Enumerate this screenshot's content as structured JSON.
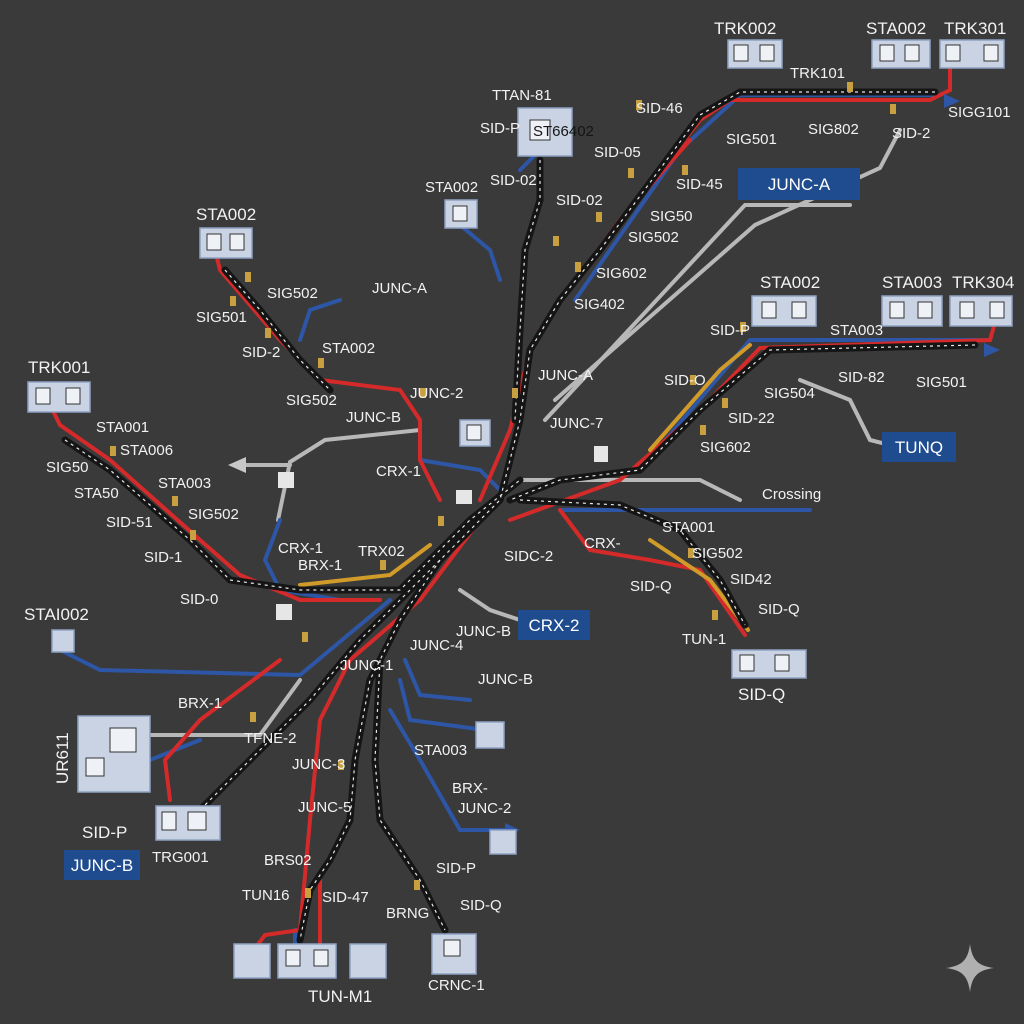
{
  "colors": {
    "background": "#3a3a3a",
    "track_red": "#d42a2a",
    "track_blue": "#2e56a6",
    "track_gray": "#b8b8b8",
    "track_yellow": "#d19b2a",
    "rail_dark": "#151515",
    "badge_blue": "#1f4b8f",
    "signal_gold": "#c8a040"
  },
  "icons": {
    "watermark": "sparkle-icon"
  },
  "labels": {
    "trk002_top": "TRK002",
    "sta002_top": "STA002",
    "trk301": "TRK301",
    "trk101": "TRK101",
    "tan81": "TTAN-81",
    "sidp_top": "SID-P",
    "st66402": "ST66402",
    "sid46": "SID-46",
    "sig501_top": "SIG501",
    "sig802": "SIG802",
    "sid2_top": "SID-2",
    "sigg101": "SIGG101",
    "sid05": "SID-05",
    "sid45": "SID-45",
    "sid02a": "SID-02",
    "sid02b": "SID-02",
    "sig50_mid": "SIG50",
    "sig502_mid": "SIG502",
    "sig602_mid": "SIG602",
    "sig402": "SIG402",
    "sta002_mid": "STA002",
    "sta002_left": "STA002",
    "sig502_left": "SIG502",
    "junca_left": "JUNC-A",
    "sig501_left": "SIG501",
    "sid2_left": "SID-2",
    "sta002_left2": "STA002",
    "sta002_r": "STA002",
    "sta003_r": "STA003",
    "trk304": "TRK304",
    "sidp_r": "SID-P",
    "sta003_r2": "STA003",
    "sido_r": "SID-O",
    "sid82": "SID-82",
    "sig501_r": "SIG501",
    "sig504": "SIG504",
    "sid22": "SID-22",
    "sig602_r": "SIG602",
    "junca_mid": "JUNC-A",
    "junc7": "JUNC-7",
    "junc2_mid": "JUNC-2",
    "sig502_mid2": "SIG502",
    "juncb_mid": "JUNC-B",
    "crx1_mid": "CRX-1",
    "trk001": "TRK001",
    "sta001": "STA001",
    "sta006": "STA006",
    "sig50_l": "SIG50",
    "sta50": "STA50",
    "sta003_l": "STA003",
    "sid51": "SID-51",
    "sig502_l": "SIG502",
    "sid1_l": "SID-1",
    "crx1_l": "CRX-1",
    "brx1_l": "BRX-1",
    "trx02": "TRX02",
    "sid0": "SID-0",
    "crossing": "Crossing",
    "sta001_r": "STA001",
    "crx_r": "CRX-",
    "sig502_r2": "SIG502",
    "sidq_r1": "SID-Q",
    "sid42": "SID42",
    "sidq_r2": "SID-Q",
    "tun1": "TUN-1",
    "sidq_r3": "SID-Q",
    "sidc2": "SIDC-2",
    "stai002": "STAI002",
    "juncb_c": "JUNC-B",
    "junc4": "JUNC-4",
    "junc1": "JUNC-1",
    "juncb_c2": "JUNC-B",
    "brx1_b": "BRX-1",
    "tfne2": "TFNE-2",
    "ur611": "UR611",
    "junc3": "JUNC-3",
    "sta003_b": "STA003",
    "brx_b": "BRX-",
    "junc5": "JUNC-5",
    "junc2_b": "JUNC-2",
    "sidp_bl": "SID-P",
    "trg001": "TRG001",
    "brs02": "BRS02",
    "sidp_b": "SID-P",
    "tun16": "TUN16",
    "sid47": "SID-47",
    "brng": "BRNG",
    "sidq_b": "SID-Q",
    "tunm1": "TUN-M1",
    "crnc1": "CRNC-1"
  },
  "badges": {
    "junca_top": "JUNC-A",
    "tunq": "TUNQ",
    "crx2": "CRX-2",
    "juncb_bl": "JUNC-B"
  }
}
